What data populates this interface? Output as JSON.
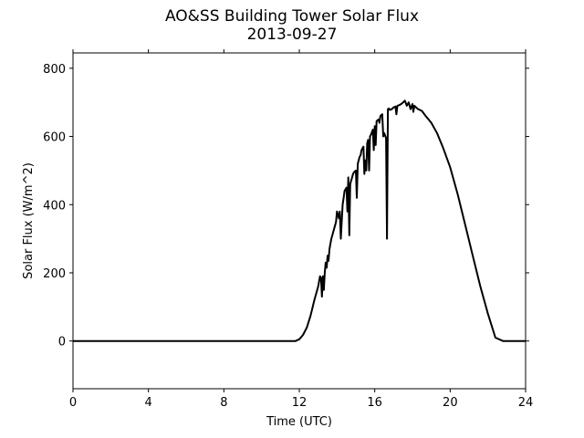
{
  "chart_data": {
    "type": "line",
    "title": "AO&SS Building Tower Solar Flux",
    "subtitle": "2013-09-27",
    "xlabel": "Time (UTC)",
    "ylabel": "Solar Flux (W/m^2)",
    "xlim": [
      0,
      24
    ],
    "ylim": [
      -140,
      845
    ],
    "xticks": [
      0,
      4,
      8,
      12,
      16,
      20,
      24
    ],
    "yticks": [
      0,
      200,
      400,
      600,
      800
    ],
    "grid": false,
    "line_color": "#000000",
    "series": [
      {
        "x": [
          0,
          11.5,
          11.8,
          12.0,
          12.2,
          12.4,
          12.6,
          12.8,
          13.0,
          13.05,
          13.1,
          13.15,
          13.2,
          13.25,
          13.3,
          13.35,
          13.4,
          13.45,
          13.5,
          13.55,
          13.6,
          13.7,
          13.75,
          13.8,
          13.9,
          13.95,
          14.0,
          14.1,
          14.15,
          14.2,
          14.3,
          14.35,
          14.4,
          14.5,
          14.55,
          14.6,
          14.65,
          14.7,
          14.75,
          14.8,
          14.85,
          14.9,
          15.0,
          15.05,
          15.1,
          15.2,
          15.25,
          15.3,
          15.4,
          15.45,
          15.5,
          15.55,
          15.6,
          15.65,
          15.7,
          15.75,
          15.8,
          15.9,
          15.95,
          16.0,
          16.05,
          16.1,
          16.2,
          16.25,
          16.3,
          16.4,
          16.45,
          16.5,
          16.6,
          16.65,
          16.7,
          16.75,
          16.8,
          16.9,
          17.0,
          17.1,
          17.15,
          17.2,
          17.3,
          17.4,
          17.5,
          17.6,
          17.7,
          17.8,
          17.9,
          18.0,
          18.05,
          18.1,
          18.2,
          18.3,
          18.5,
          18.7,
          19.0,
          19.3,
          19.6,
          20.0,
          20.4,
          20.8,
          21.2,
          21.6,
          22.0,
          22.4,
          22.8,
          23.2,
          23.4,
          23.6,
          23.8,
          24.0
        ],
        "y": [
          0,
          0,
          0,
          5,
          18,
          40,
          75,
          120,
          160,
          175,
          190,
          185,
          130,
          190,
          150,
          200,
          230,
          215,
          250,
          235,
          270,
          300,
          310,
          320,
          340,
          350,
          380,
          360,
          380,
          300,
          400,
          420,
          440,
          450,
          380,
          480,
          310,
          460,
          470,
          480,
          490,
          495,
          500,
          420,
          520,
          540,
          545,
          560,
          570,
          490,
          530,
          500,
          580,
          590,
          500,
          600,
          605,
          620,
          560,
          630,
          575,
          645,
          650,
          640,
          660,
          665,
          600,
          610,
          595,
          300,
          680,
          682,
          678,
          680,
          685,
          688,
          665,
          690,
          692,
          695,
          700,
          705,
          690,
          700,
          680,
          695,
          672,
          690,
          685,
          680,
          675,
          660,
          640,
          610,
          570,
          510,
          430,
          340,
          250,
          160,
          80,
          10,
          0,
          0,
          0,
          0,
          0,
          0
        ],
        "_note": "shape only"
      }
    ]
  }
}
